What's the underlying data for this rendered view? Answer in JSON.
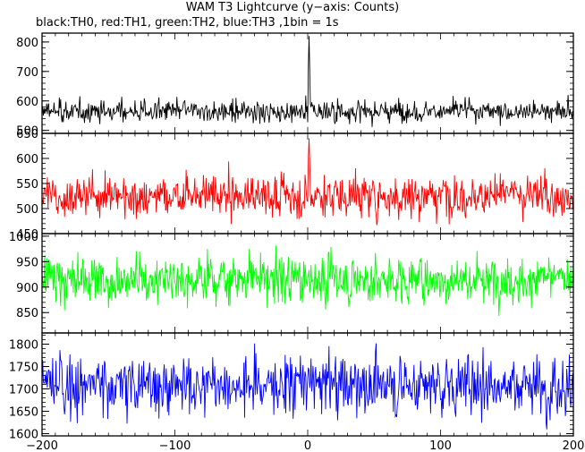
{
  "title": "WAM T3 Lightcurve (y−axis: Counts)",
  "subtitle": "black:TH0, red:TH1, green:TH2, blue:TH3 ,1bin = 1s",
  "chart_data": [
    {
      "type": "line",
      "series": [
        {
          "name": "TH0",
          "color": "#000000",
          "baseline": 565,
          "noise": 24,
          "peak": 820,
          "peak_width": 0.6
        }
      ],
      "xlim": [
        -200,
        200
      ],
      "ylim": [
        490,
        830
      ],
      "yticks": [
        500,
        600,
        700,
        800
      ],
      "xlabel": "",
      "ylabel": ""
    },
    {
      "type": "line",
      "series": [
        {
          "name": "TH1",
          "color": "#ff0000",
          "baseline": 525,
          "noise": 28,
          "peak": 640,
          "peak_width": 0.7
        }
      ],
      "xlim": [
        -200,
        200
      ],
      "ylim": [
        450,
        650
      ],
      "yticks": [
        450,
        500,
        550,
        600,
        650
      ],
      "xlabel": "",
      "ylabel": ""
    },
    {
      "type": "line",
      "series": [
        {
          "name": "TH2",
          "color": "#00ff00",
          "baseline": 915,
          "noise": 32,
          "peak": 0,
          "peak_width": 0
        }
      ],
      "xlim": [
        -200,
        200
      ],
      "ylim": [
        810,
        1005
      ],
      "yticks": [
        850,
        900,
        950,
        1000
      ],
      "xlabel": "",
      "ylabel": ""
    },
    {
      "type": "line",
      "series": [
        {
          "name": "TH3",
          "color": "#0000ff",
          "baseline": 1710,
          "noise": 45,
          "peak": 0,
          "peak_width": 0
        }
      ],
      "xlim": [
        -200,
        200
      ],
      "ylim": [
        1595,
        1825
      ],
      "yticks": [
        1600,
        1650,
        1700,
        1750,
        1800
      ],
      "xticks": [
        -200,
        -100,
        0,
        100,
        200
      ],
      "xlabel": "",
      "ylabel": ""
    }
  ]
}
